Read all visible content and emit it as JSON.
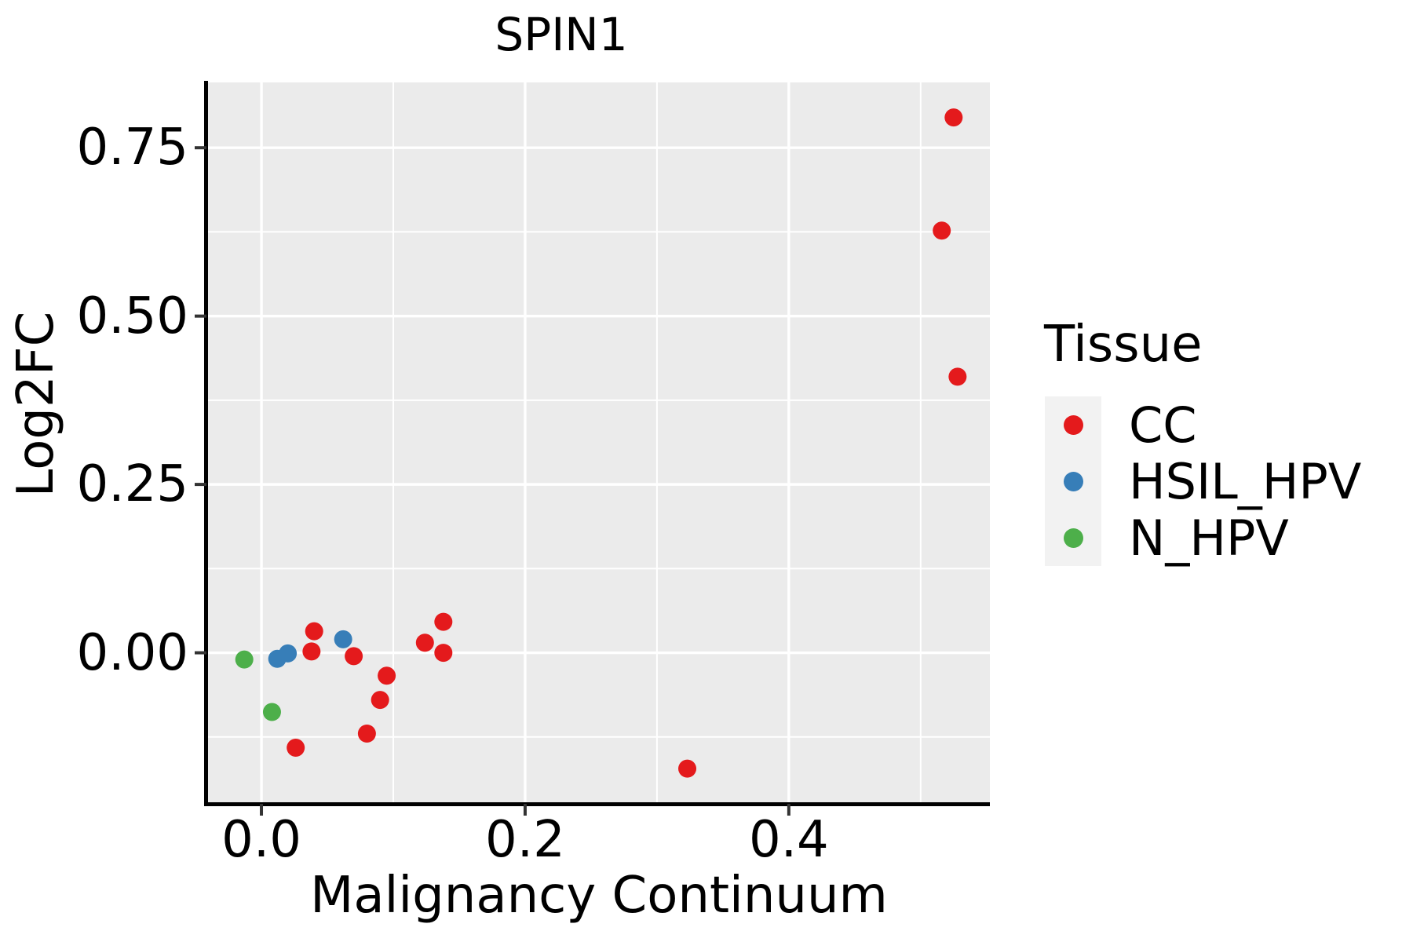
{
  "title": "SPIN1",
  "chart_data": {
    "type": "scatter",
    "title": "SPIN1",
    "xlabel": "Malignancy Continuum",
    "ylabel": "Log2FC",
    "legend_title": "Tissue",
    "legend_position": "right",
    "grid": true,
    "panel_bg": "#EBEBEB",
    "grid_color": "#FFFFFF",
    "legend_key_bg": "#F2F2F2",
    "axis_line_color": "#000000",
    "tick_color": "#333333",
    "xlim": [
      -0.0405,
      0.5525
    ],
    "ylim": [
      -0.222,
      0.847
    ],
    "x_ticks": [
      0.0,
      0.2,
      0.4
    ],
    "x_tick_labels": [
      "0.0",
      "0.2",
      "0.4"
    ],
    "y_ticks": [
      0.0,
      0.25,
      0.5,
      0.75
    ],
    "y_tick_labels": [
      "0.00",
      "0.25",
      "0.50",
      "0.75"
    ],
    "x_minor_gridlines": [
      0.1,
      0.3,
      0.5
    ],
    "y_minor_gridlines": [
      -0.125,
      0.125,
      0.375,
      0.625
    ],
    "series": [
      {
        "name": "CC",
        "color": "#E41A1C",
        "points": [
          [
            0.525,
            0.795
          ],
          [
            0.516,
            0.627
          ],
          [
            0.528,
            0.41
          ],
          [
            0.04,
            0.032
          ],
          [
            0.038,
            0.002
          ],
          [
            0.07,
            -0.005
          ],
          [
            0.095,
            -0.034
          ],
          [
            0.09,
            -0.07
          ],
          [
            0.08,
            -0.12
          ],
          [
            0.026,
            -0.141
          ],
          [
            0.124,
            0.015
          ],
          [
            0.138,
            0.046
          ],
          [
            0.138,
            0.0
          ],
          [
            0.323,
            -0.172
          ]
        ]
      },
      {
        "name": "HSIL_HPV",
        "color": "#377EB8",
        "points": [
          [
            0.012,
            -0.009
          ],
          [
            0.02,
            -0.001
          ],
          [
            0.062,
            0.02
          ]
        ]
      },
      {
        "name": "N_HPV",
        "color": "#4DAF4A",
        "points": [
          [
            -0.013,
            -0.01
          ],
          [
            0.008,
            -0.088
          ]
        ]
      }
    ]
  }
}
